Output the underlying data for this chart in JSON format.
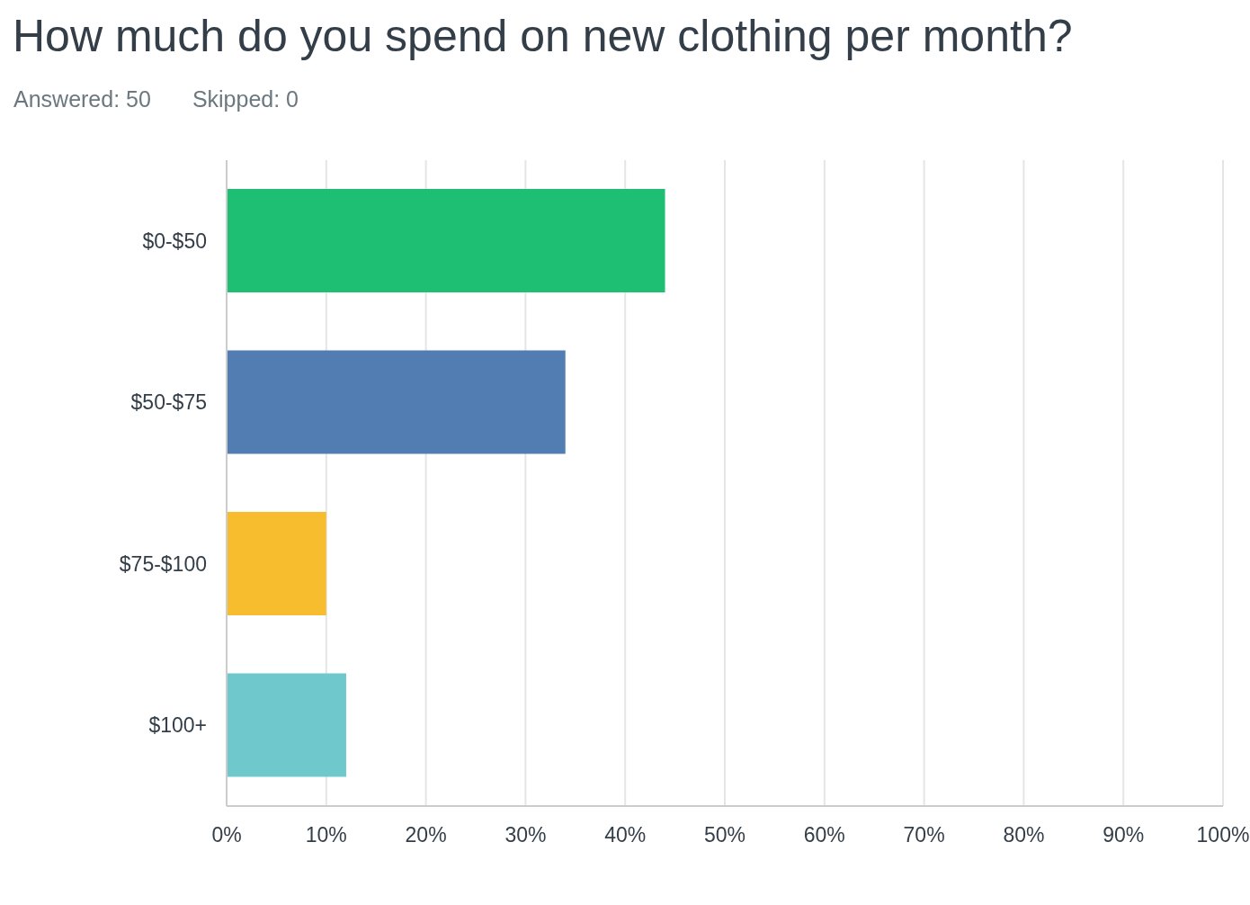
{
  "chart_data": {
    "type": "bar",
    "orientation": "horizontal",
    "title": "How much do you spend on new clothing per month?",
    "annotations": [
      "Answered: 50",
      "Skipped: 0"
    ],
    "categories": [
      "$0-$50",
      "$50-$75",
      "$75-$100",
      "$100+"
    ],
    "values": [
      44,
      34,
      10,
      12
    ],
    "colors": [
      "#1fbf73",
      "#527db3",
      "#f7bd2e",
      "#6fc8cb"
    ],
    "xlim": [
      0,
      100
    ],
    "xticks": [
      {
        "value": 0,
        "label": "0%"
      },
      {
        "value": 10,
        "label": "10%"
      },
      {
        "value": 20,
        "label": "20%"
      },
      {
        "value": 30,
        "label": "30%"
      },
      {
        "value": 40,
        "label": "40%"
      },
      {
        "value": 50,
        "label": "50%"
      },
      {
        "value": 60,
        "label": "60%"
      },
      {
        "value": 70,
        "label": "70%"
      },
      {
        "value": 80,
        "label": "80%"
      },
      {
        "value": 90,
        "label": "90%"
      },
      {
        "value": 100,
        "label": "100%"
      }
    ],
    "grid": "x",
    "legend": false
  }
}
